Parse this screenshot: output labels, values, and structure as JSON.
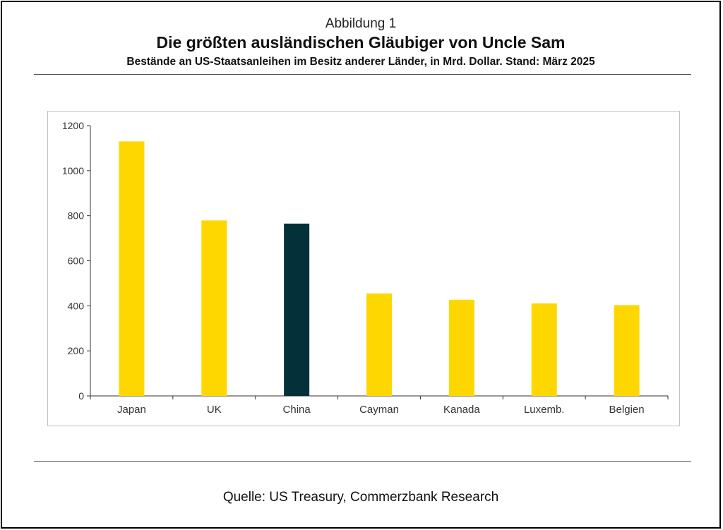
{
  "figure": {
    "label": "Abbildung 1",
    "title": "Die größten ausländischen Gläubiger von Uncle Sam",
    "subtitle": "Bestände an US-Staatsanleihen im Besitz anderer Länder, in Mrd. Dollar. Stand: März 2025",
    "source": "Quelle: US Treasury, Commerzbank Research"
  },
  "chart_data": {
    "type": "bar",
    "title": "Die größten ausländischen Gläubiger von Uncle Sam",
    "categories": [
      "Japan",
      "UK",
      "China",
      "Cayman",
      "Kanada",
      "Luxemb.",
      "Belgien"
    ],
    "values": [
      1130,
      779,
      765,
      455,
      427,
      411,
      403
    ],
    "bar_colors": [
      "#FFD700",
      "#FFD700",
      "#04303A",
      "#FFD700",
      "#FFD700",
      "#FFD700",
      "#FFD700"
    ],
    "ylim": [
      0,
      1200
    ],
    "yticks": [
      0,
      200,
      400,
      600,
      800,
      1000,
      1200
    ],
    "xlabel": "",
    "ylabel": "",
    "grid": false,
    "legend": "none"
  }
}
